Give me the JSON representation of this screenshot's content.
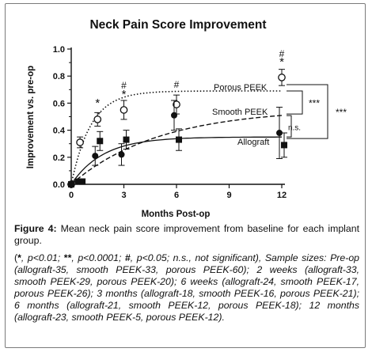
{
  "chart_data": {
    "type": "line",
    "title": "Neck Pain Score Improvement",
    "xlabel": "Months Post-op",
    "ylabel": "Improvement vs. pre-op",
    "xlim": [
      0,
      12
    ],
    "ylim": [
      0,
      1.0
    ],
    "x_ticks": [
      "0",
      "3",
      "6",
      "9",
      "12"
    ],
    "y_ticks": [
      "0.0",
      "0.2",
      "0.4",
      "0.6",
      "0.8",
      "1.0"
    ],
    "x_months": [
      0,
      0.5,
      1.5,
      3,
      6,
      12
    ],
    "series": [
      {
        "name": "Porous PEEK",
        "marker": "open-circle",
        "line": "dotted",
        "values": [
          0.0,
          0.31,
          0.48,
          0.55,
          0.59,
          0.79
        ],
        "err": [
          0.0,
          0.04,
          0.05,
          0.07,
          0.07,
          0.06
        ]
      },
      {
        "name": "Smooth PEEK",
        "marker": "filled-circle",
        "line": "dashed",
        "values": [
          0.0,
          0.02,
          0.21,
          0.22,
          0.51,
          0.38
        ],
        "err": [
          0.0,
          0.02,
          0.07,
          0.08,
          0.11,
          0.19
        ]
      },
      {
        "name": "Allograft",
        "marker": "filled-square",
        "line": "solid",
        "values": [
          0.0,
          0.02,
          0.32,
          0.33,
          0.33,
          0.29
        ],
        "err": [
          0.0,
          0.02,
          0.07,
          0.07,
          0.08,
          0.09
        ]
      }
    ],
    "annotations": [
      {
        "text": "*",
        "x": 1.5
      },
      {
        "text": "#",
        "x": 3
      },
      {
        "text": "*",
        "x": 3
      },
      {
        "text": "#",
        "x": 6
      },
      {
        "text": "#",
        "x": 12
      },
      {
        "text": "*",
        "x": 12
      }
    ],
    "brackets": [
      {
        "text": "***",
        "between": [
          "Porous PEEK",
          "Smooth PEEK"
        ]
      },
      {
        "text": "n.s.",
        "between": [
          "Smooth PEEK",
          "Allograft"
        ]
      },
      {
        "text": "***",
        "between": [
          "Porous PEEK",
          "Allograft"
        ]
      }
    ]
  },
  "caption": {
    "label": "Figure 4:",
    "text": " Mean neck pain score improvement from baseline for each implant group.",
    "sig_star": "*",
    "sig_double_star": "**",
    "sig_hash": "#",
    "sig_text_1": ", p<0.01; ",
    "sig_text_2": ", p<0.0001; ",
    "sig_text_3": ", p<0.05; n.s., not significant), Sample sizes: Pre-op (allograft-35, smooth PEEK-33, porous PEEK-60); 2 weeks (allograft-33, smooth PEEK-29, porous PEEK-20); 6 weeks (allograft-24, smooth PEEK-17, porous PEEK-26); 3 months (allograft-18, smooth PEEK-16, porous PEEK-21); 6 months (allograft-21, smooth PEEK-12, porous PEEK-18); 12 months (allograft-23, smooth PEEK-5, porous PEEK-12).",
    "open_paren": "("
  }
}
